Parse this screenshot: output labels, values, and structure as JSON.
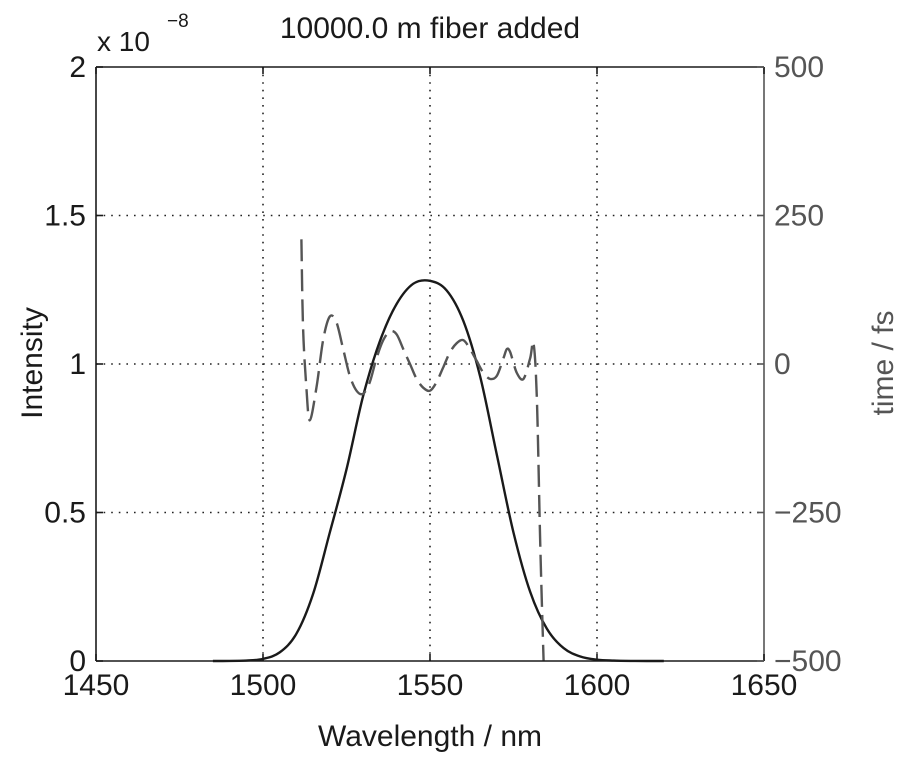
{
  "chart_data": {
    "type": "line",
    "title": "10000.0 m fiber added",
    "xlabel": "Wavelength / nm",
    "ylabel": "Intensity",
    "ylabel_right": "time / fs",
    "xlim": [
      1450,
      1650
    ],
    "ylim": [
      0,
      2e-08
    ],
    "ylim_right": [
      -500,
      500
    ],
    "x_ticks": [
      "1450",
      "1500",
      "1550",
      "1600",
      "1650"
    ],
    "y_ticks": [
      "0",
      "0.5",
      "1",
      "1.5",
      "2"
    ],
    "y_ticks_right": [
      "−500",
      "−250",
      "0",
      "250",
      "500"
    ],
    "y_multiplier_base": "x 10",
    "y_multiplier_exponent": "−8",
    "grid": true,
    "colors": {
      "intensity": "#1a1a1a",
      "delay": "#555555",
      "axes": "#1a1a1a",
      "axes_right": "#555555"
    },
    "series": [
      {
        "axis": "left",
        "style": "solid",
        "x": [
          1485,
          1490,
          1495,
          1500,
          1505,
          1510,
          1515,
          1520,
          1525,
          1530,
          1535,
          1540,
          1545,
          1550,
          1555,
          1560,
          1565,
          1570,
          1575,
          1580,
          1585,
          1590,
          1595,
          1600,
          1605,
          1610,
          1615,
          1620
        ],
        "values": [
          0.0,
          2e-12,
          1.4e-11,
          7.2e-11,
          2.91e-10,
          9.18e-10,
          2.258e-09,
          4.325e-09,
          6.453e-09,
          8.932e-09,
          1.0769e-08,
          1.2021e-08,
          1.2703e-08,
          1.28e-08,
          1.2476e-08,
          1.1443e-08,
          9.586e-09,
          6.951e-09,
          4.324e-09,
          2.326e-09,
          1.083e-09,
          4.35e-10,
          1.51e-10,
          4.5e-11,
          1.2e-11,
          3e-12,
          1e-12,
          0.0
        ]
      },
      {
        "axis": "right",
        "style": "dashed",
        "x": [
          1511.5,
          1512,
          1513,
          1514,
          1516,
          1518,
          1520,
          1522,
          1524,
          1526,
          1528,
          1530,
          1532,
          1534,
          1536,
          1538,
          1540,
          1542,
          1544,
          1546,
          1548,
          1550,
          1552,
          1554,
          1556,
          1558,
          1560,
          1562,
          1564,
          1566,
          1568,
          1570,
          1572,
          1573,
          1574,
          1576,
          1578,
          1580,
          1581,
          1582,
          1583,
          1584
        ],
        "values": [
          210,
          60,
          -40,
          -95,
          -40,
          40,
          80,
          70,
          25,
          -20,
          -45,
          -50,
          -30,
          10,
          40,
          55,
          50,
          25,
          0,
          -25,
          -40,
          -45,
          -30,
          -5,
          20,
          35,
          40,
          25,
          5,
          -15,
          -25,
          -20,
          10,
          25,
          20,
          -15,
          -25,
          10,
          35,
          -60,
          -300,
          -500
        ]
      }
    ]
  }
}
